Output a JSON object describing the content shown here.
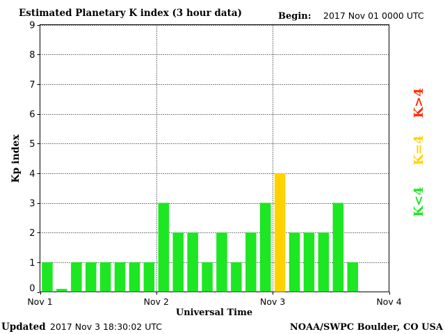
{
  "header": {
    "title": "Estimated Planetary K index (3 hour data)",
    "begin_label": "Begin:",
    "begin_value": "2017 Nov 01 0000 UTC"
  },
  "footer": {
    "updated_label": "Updated",
    "updated_value": "2017 Nov  3 18:30:02 UTC",
    "source": "NOAA/SWPC Boulder, CO USA"
  },
  "legend": [
    {
      "label": "K>4",
      "color": "#ff2a00"
    },
    {
      "label": "K=4",
      "color": "#ffd200"
    },
    {
      "label": "K<4",
      "color": "#1de622"
    }
  ],
  "chart_data": {
    "type": "bar",
    "xlabel": "Universal Time",
    "ylabel": "Kp index",
    "ylim": [
      0,
      9
    ],
    "y_ticks": [
      "0",
      "1",
      "2",
      "3",
      "4",
      "5",
      "6",
      "7",
      "8",
      "9"
    ],
    "x_ticks": [
      "Nov 1",
      "Nov 2",
      "Nov 3",
      "Nov 4"
    ],
    "slots_per_day": 8,
    "grid": true,
    "values": [
      1,
      0.1,
      1,
      1,
      1,
      1,
      1,
      1,
      3,
      2,
      2,
      1,
      2,
      1,
      2,
      3,
      4,
      2,
      2,
      2,
      3,
      1
    ],
    "colors": {
      "low": "#1de622",
      "equal": "#ffd200",
      "high": "#ff2a00"
    }
  }
}
